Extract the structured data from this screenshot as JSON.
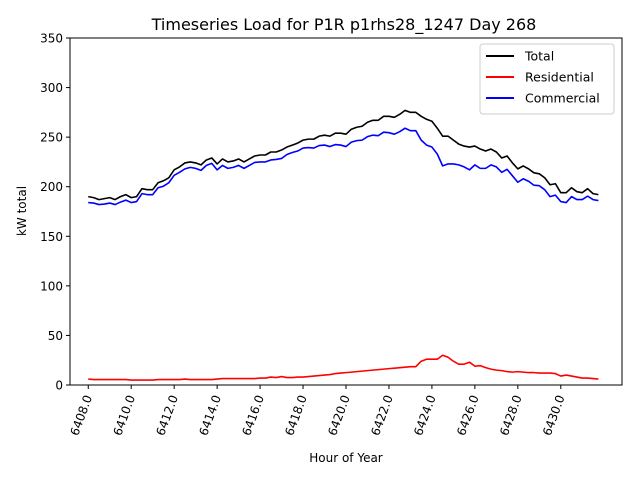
{
  "chart_data": {
    "type": "line",
    "title": "Timeseries Load for P1R p1rhs28_1247  Day 268",
    "xlabel": "Hour of Year",
    "ylabel": "kW total",
    "xlim": [
      6407.15,
      6432.85
    ],
    "ylim": [
      0,
      350
    ],
    "xticks": [
      6408,
      6410,
      6412,
      6414,
      6416,
      6418,
      6420,
      6422,
      6424,
      6426,
      6428,
      6430
    ],
    "xtick_labels": [
      "6408.0",
      "6410.0",
      "6412.0",
      "6414.0",
      "6416.0",
      "6418.0",
      "6420.0",
      "6422.0",
      "6424.0",
      "6426.0",
      "6428.0",
      "6430.0"
    ],
    "yticks": [
      0,
      50,
      100,
      150,
      200,
      250,
      300,
      350
    ],
    "ytick_labels": [
      "0",
      "50",
      "100",
      "150",
      "200",
      "250",
      "300",
      "350"
    ],
    "grid": false,
    "legend": "top-right",
    "x_start": 6408,
    "x_step": 0.25,
    "series": [
      {
        "name": "Total",
        "color": "#000000",
        "values": [
          190,
          189,
          187,
          188,
          189,
          187,
          190,
          192,
          189,
          190,
          198,
          197,
          197,
          204,
          206,
          209,
          217,
          220,
          224,
          225,
          224,
          222,
          227,
          229,
          223,
          228,
          225,
          226,
          228,
          225,
          228,
          231,
          232,
          232,
          235,
          235,
          237,
          240,
          242,
          244,
          247,
          248,
          248,
          251,
          252,
          251,
          254,
          254,
          253,
          258,
          260,
          261,
          265,
          267,
          267,
          271,
          271,
          270,
          273,
          277,
          275,
          275,
          271,
          268,
          266,
          259,
          251,
          251,
          247,
          243,
          241,
          240,
          241,
          238,
          236,
          238,
          235,
          229,
          231,
          224,
          218,
          221,
          218,
          214,
          213,
          209,
          202,
          203,
          194,
          194,
          199,
          195,
          194,
          198,
          193,
          192
        ]
      },
      {
        "name": "Residential",
        "color": "#ff0000",
        "values": [
          6,
          5.5,
          5.5,
          5.5,
          5.5,
          5.5,
          5.5,
          5.5,
          5,
          5,
          5,
          5,
          5,
          5.5,
          5.5,
          5.5,
          5.5,
          5.5,
          6,
          5.5,
          5.5,
          5.5,
          5.5,
          5.5,
          6,
          6.5,
          6.5,
          6.5,
          6.5,
          6.5,
          6.5,
          6.5,
          7,
          7,
          8,
          7.5,
          8.5,
          7.5,
          7.5,
          8,
          8,
          8.5,
          9,
          9.5,
          10,
          10.5,
          11.5,
          12,
          12.5,
          13,
          13.5,
          14,
          14.5,
          15,
          15.5,
          16,
          16.5,
          17,
          17.5,
          18,
          18.5,
          18.5,
          24,
          26,
          26,
          26,
          30,
          28,
          24,
          21,
          21,
          23,
          19,
          19.5,
          17.5,
          16,
          15,
          14.5,
          13.5,
          13,
          13.5,
          13,
          12.5,
          12.5,
          12,
          12,
          12,
          11.5,
          9,
          10,
          9,
          8,
          7,
          7,
          6.5,
          6
        ]
      },
      {
        "name": "Commercial",
        "color": "#0000ff",
        "values": [
          184,
          183.5,
          182,
          182.5,
          183.5,
          182,
          184.5,
          186.5,
          184,
          185,
          193,
          192,
          192,
          199,
          200.5,
          204,
          211.5,
          214.5,
          218,
          219.5,
          218.5,
          216.5,
          221.5,
          223.5,
          217,
          221.5,
          218.5,
          219.5,
          221.5,
          218.5,
          221.5,
          224.5,
          225,
          225,
          227,
          227.5,
          228.5,
          232.5,
          234.5,
          236,
          239,
          239.5,
          239,
          241.5,
          242,
          240.5,
          242.5,
          242,
          240.5,
          245,
          246.5,
          247,
          250.5,
          252,
          251.5,
          255,
          254.5,
          253,
          255.5,
          259,
          256.5,
          256.5,
          247,
          242,
          240,
          233,
          221,
          223,
          223,
          222,
          220,
          217,
          222,
          218.5,
          218.5,
          222,
          220,
          214.5,
          217.5,
          211,
          204.5,
          208,
          205.5,
          201.5,
          201,
          197,
          190,
          191.5,
          185,
          184,
          190,
          187,
          187,
          190.5,
          187,
          186
        ]
      }
    ]
  }
}
